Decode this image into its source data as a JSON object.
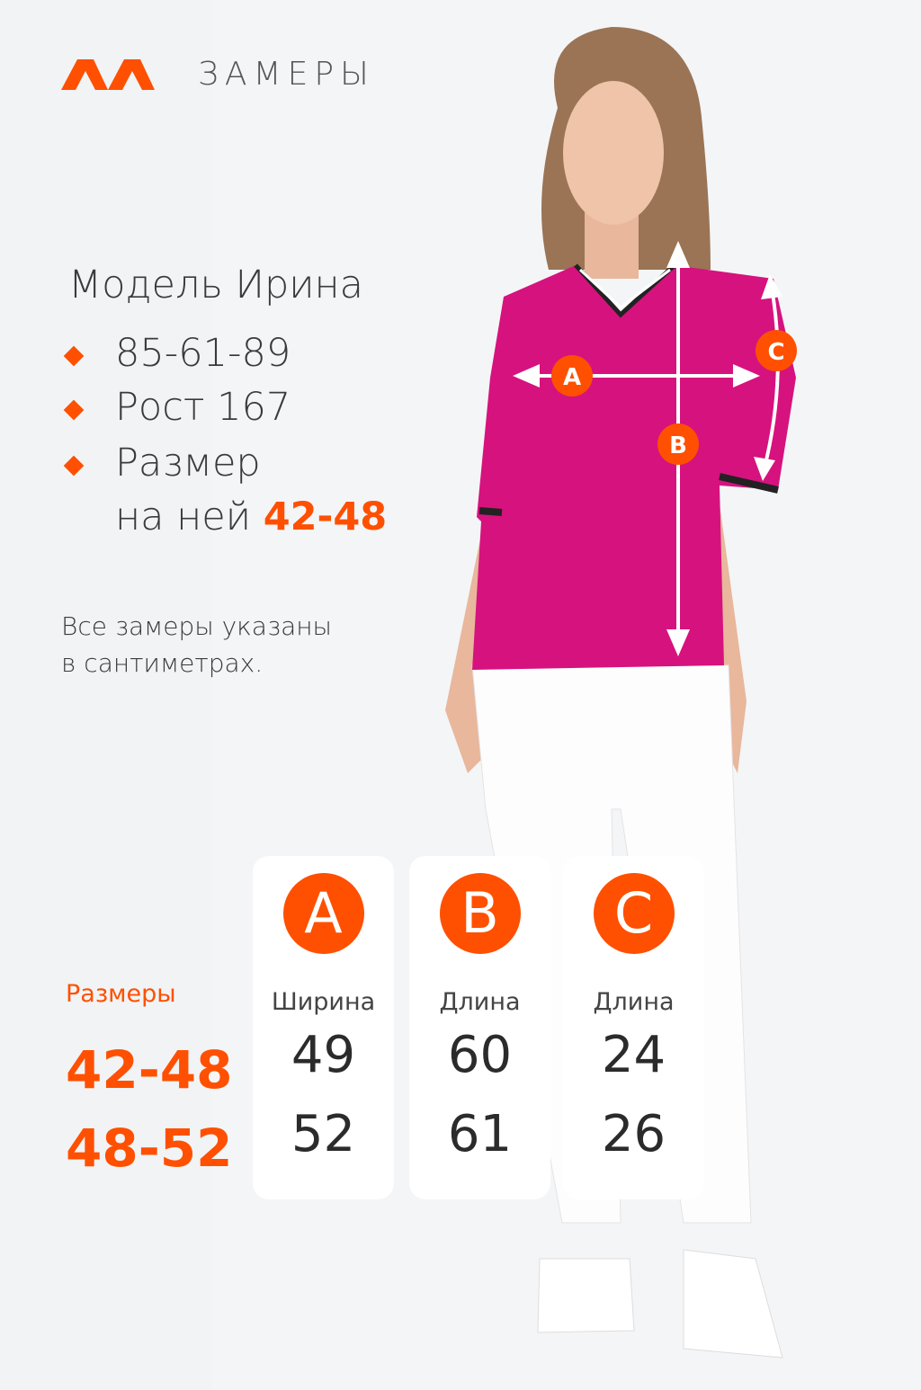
{
  "header": {
    "logo": "ЛЛ",
    "title": "ЗАМЕРЫ"
  },
  "colors": {
    "accent": "#fe5000",
    "background": "#f2f3f5",
    "garment": "#d6127e"
  },
  "model": {
    "name": "Модель Ирина",
    "params": [
      "85-61-89",
      "Рост 167"
    ],
    "size_line1": "Размер",
    "size_line2_prefix": "на ней ",
    "size_value": "42-48"
  },
  "note": {
    "line1": "Все замеры указаны",
    "line2": "в сантиметрах."
  },
  "photo_markers": [
    "A",
    "B",
    "C"
  ],
  "table": {
    "sizes_label": "Размеры",
    "sizes": [
      "42-48",
      "48-52"
    ],
    "columns": [
      {
        "letter": "A",
        "label": "Ширина",
        "values": [
          "49",
          "52"
        ]
      },
      {
        "letter": "B",
        "label": "Длина",
        "values": [
          "60",
          "61"
        ]
      },
      {
        "letter": "C",
        "label": "Длина",
        "values": [
          "24",
          "26"
        ]
      }
    ]
  }
}
